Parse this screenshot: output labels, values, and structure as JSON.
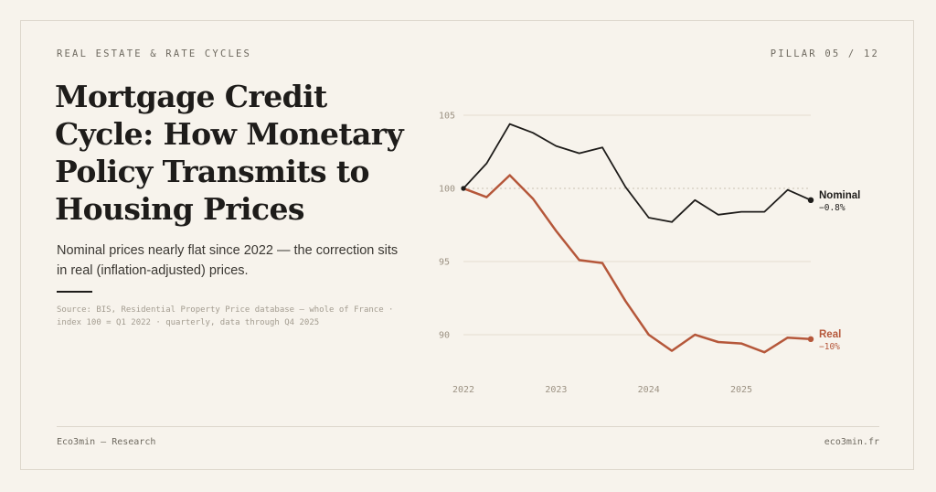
{
  "header": {
    "kicker": "REAL ESTATE & RATE CYCLES",
    "pillar": "PILLAR 05 / 12"
  },
  "title": "Mortgage Credit Cycle: How Monetary Policy Transmits to Housing Prices",
  "subtitle": "Nominal prices nearly flat since 2022 — the correction sits in real (inflation-adjusted) prices.",
  "source": "Source: BIS, Residential Property Price database — whole of France · index 100 = Q1 2022 · quarterly, data through Q4 2025",
  "footer": {
    "left": "Eco3min — Research",
    "right": "eco3min.fr"
  },
  "chart_data": {
    "type": "line",
    "x": [
      "2022Q1",
      "2022Q2",
      "2022Q3",
      "2022Q4",
      "2023Q1",
      "2023Q2",
      "2023Q3",
      "2023Q4",
      "2024Q1",
      "2024Q2",
      "2024Q3",
      "2024Q4",
      "2025Q1",
      "2025Q2",
      "2025Q3",
      "2025Q4"
    ],
    "x_tick_labels": [
      "2022",
      "2023",
      "2024",
      "2025"
    ],
    "ylim": [
      87,
      106
    ],
    "y_ticks": [
      90,
      95,
      100,
      105
    ],
    "reference_line": 100,
    "grid": true,
    "series": [
      {
        "name": "Nominal",
        "color": "#1e1c1a",
        "end_label": "−0.8%",
        "values": [
          100,
          101.7,
          104.4,
          103.8,
          102.9,
          102.4,
          102.8,
          100.1,
          98.0,
          97.7,
          99.2,
          98.2,
          98.4,
          98.4,
          99.9,
          99.2
        ]
      },
      {
        "name": "Real",
        "color": "#b5573a",
        "end_label": "−10%",
        "values": [
          100,
          99.4,
          100.9,
          99.3,
          97.1,
          95.1,
          94.9,
          92.3,
          90.0,
          88.9,
          90.0,
          89.5,
          89.4,
          88.8,
          89.8,
          89.7
        ]
      }
    ]
  }
}
